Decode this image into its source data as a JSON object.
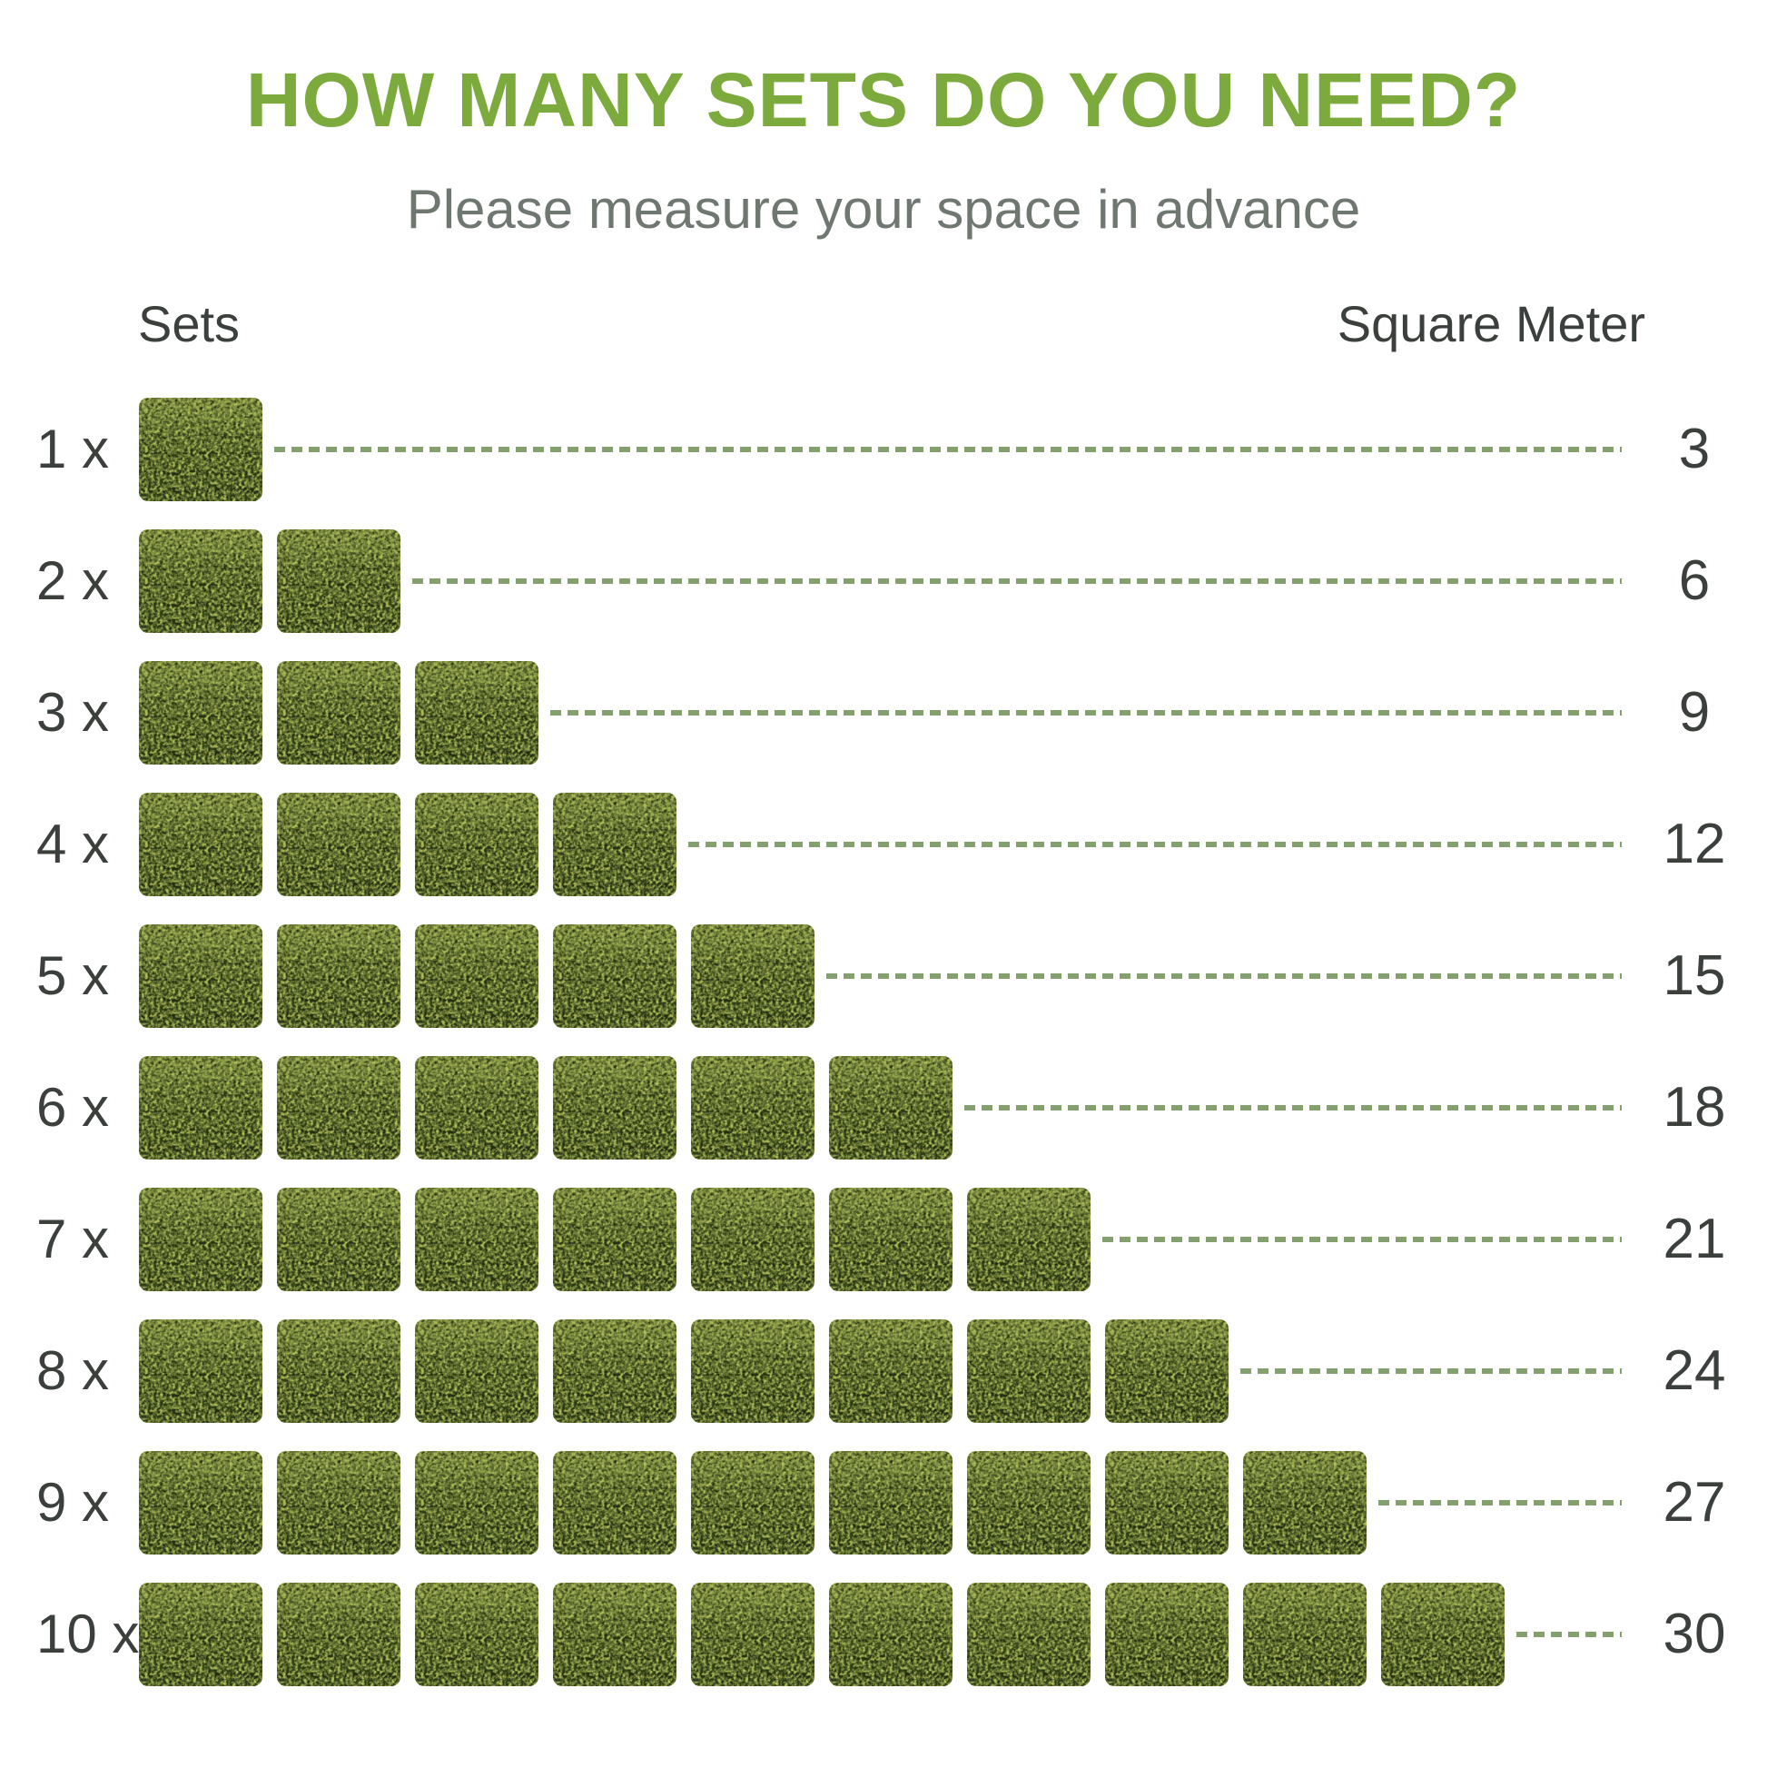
{
  "header": {
    "title": "HOW MANY SETS DO YOU NEED?",
    "subtitle": "Please measure your space in advance"
  },
  "table": {
    "left_header": "Sets",
    "right_header": "Square Meter"
  },
  "rows": [
    {
      "sets_label": "1 x",
      "count": 1,
      "square_meter": "3"
    },
    {
      "sets_label": "2 x",
      "count": 2,
      "square_meter": "6"
    },
    {
      "sets_label": "3 x",
      "count": 3,
      "square_meter": "9"
    },
    {
      "sets_label": "4 x",
      "count": 4,
      "square_meter": "12"
    },
    {
      "sets_label": "5 x",
      "count": 5,
      "square_meter": "15"
    },
    {
      "sets_label": "6 x",
      "count": 6,
      "square_meter": "18"
    },
    {
      "sets_label": "7 x",
      "count": 7,
      "square_meter": "21"
    },
    {
      "sets_label": "8 x",
      "count": 8,
      "square_meter": "24"
    },
    {
      "sets_label": "9 x",
      "count": 9,
      "square_meter": "27"
    },
    {
      "sets_label": "10 x",
      "count": 10,
      "square_meter": "30"
    }
  ],
  "icons": {
    "block": "hedge-panel-stack-icon"
  },
  "colors": {
    "title_green": "#7caa3c",
    "subtitle_gray": "#6e7770",
    "text_dark": "#3b403c",
    "dash_green": "#84a06e",
    "hedge_top": "#97a94e",
    "hedge_mid": "#55682a",
    "hedge_dark": "#31431a",
    "hedge_speckle": "#eef2d4",
    "background": "#ffffff"
  },
  "chart_data": {
    "type": "bar",
    "title": "HOW MANY SETS DO YOU NEED?",
    "subtitle": "Please measure your space in advance",
    "xlabel": "Sets",
    "ylabel": "Square Meter",
    "categories": [
      "1 x",
      "2 x",
      "3 x",
      "4 x",
      "5 x",
      "6 x",
      "7 x",
      "8 x",
      "9 x",
      "10 x"
    ],
    "values": [
      3,
      6,
      9,
      12,
      15,
      18,
      21,
      24,
      27,
      30
    ],
    "pictogram_unit": "1 hedge-panel set icon = 3 square meters",
    "legend": "none",
    "grid": "off",
    "ylim": [
      0,
      30
    ]
  }
}
